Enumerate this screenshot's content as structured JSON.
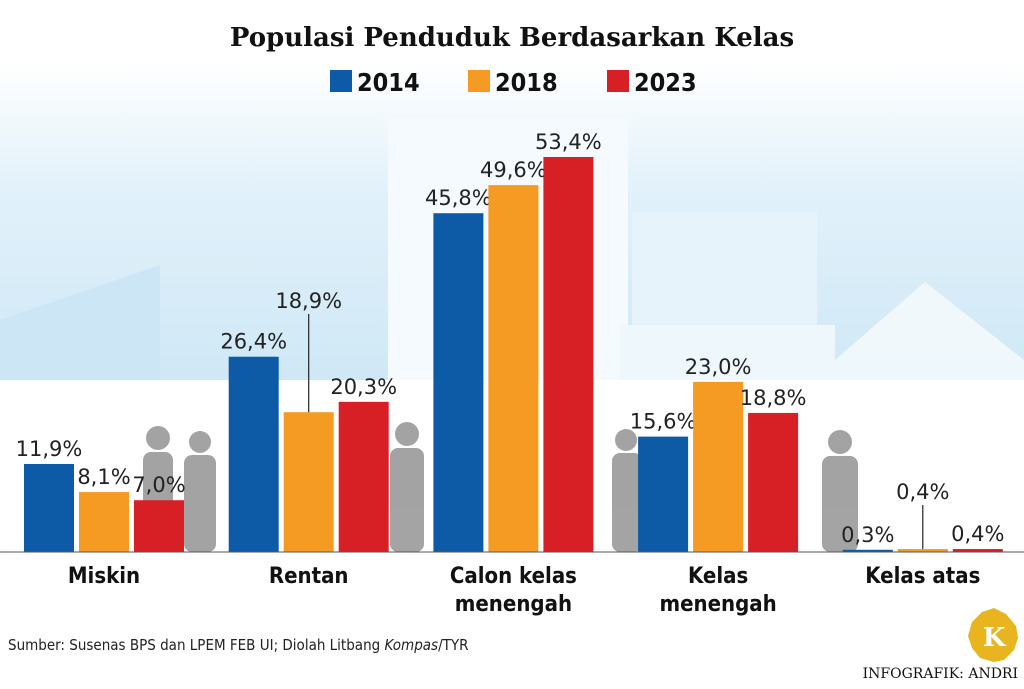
{
  "chart_data": {
    "type": "bar",
    "title": "Populasi Penduduk Berdasarkan Kelas",
    "categories": [
      "Miskin",
      "Rentan",
      "Calon kelas\nmenengah",
      "Kelas\nmenengah",
      "Kelas atas"
    ],
    "series": [
      {
        "name": "2014",
        "color": "#0d5aa7",
        "values": [
          11.9,
          26.4,
          45.8,
          15.6,
          0.3
        ],
        "value_labels": [
          "11,9%",
          "26,4%",
          "45,8%",
          "15,6%",
          "0,3%"
        ]
      },
      {
        "name": "2018",
        "color": "#f59a23",
        "values": [
          8.1,
          18.9,
          49.6,
          23.0,
          0.4
        ],
        "value_labels": [
          "8,1%",
          "18,9%",
          "49,6%",
          "23,0%",
          "0,4%"
        ]
      },
      {
        "name": "2023",
        "color": "#d71f26",
        "values": [
          7.0,
          20.3,
          53.4,
          18.8,
          0.4
        ],
        "value_labels": [
          "7,0%",
          "20,3%",
          "53,4%",
          "18,8%",
          "0,4%"
        ]
      }
    ],
    "source": [
      "Sumber: Susenas BPS dan LPEM FEB UI; Diolah Litbang ",
      "Kompas",
      "/TYR"
    ],
    "credit": "INFOGRAFIK: ANDRI",
    "logo": "K"
  }
}
